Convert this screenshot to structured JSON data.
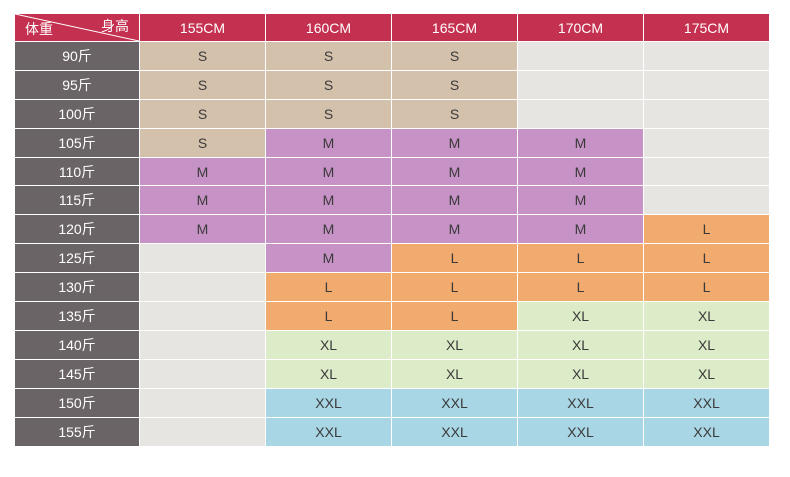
{
  "header": {
    "weight_label": "体重",
    "height_label": "身高",
    "heights": [
      "155CM",
      "160CM",
      "165CM",
      "170CM",
      "175CM"
    ]
  },
  "colors": {
    "header_bg": "#c4304f",
    "row_head_bg": "#6b6466",
    "S": "#d4c1ac",
    "M": "#c793c6",
    "L": "#f1ab6e",
    "XL": "#dcecc8",
    "XXL": "#a9d6e5",
    "empty": "#e6e5e1"
  },
  "rows": [
    {
      "weight": "90斤",
      "sizes": [
        "S",
        "S",
        "S",
        "",
        ""
      ]
    },
    {
      "weight": "95斤",
      "sizes": [
        "S",
        "S",
        "S",
        "",
        ""
      ]
    },
    {
      "weight": "100斤",
      "sizes": [
        "S",
        "S",
        "S",
        "",
        ""
      ]
    },
    {
      "weight": "105斤",
      "sizes": [
        "S",
        "M",
        "M",
        "M",
        ""
      ]
    },
    {
      "weight": "110斤",
      "sizes": [
        "M",
        "M",
        "M",
        "M",
        ""
      ]
    },
    {
      "weight": "115斤",
      "sizes": [
        "M",
        "M",
        "M",
        "M",
        ""
      ]
    },
    {
      "weight": "120斤",
      "sizes": [
        "M",
        "M",
        "M",
        "M",
        "L"
      ]
    },
    {
      "weight": "125斤",
      "sizes": [
        "",
        "M",
        "L",
        "L",
        "L"
      ]
    },
    {
      "weight": "130斤",
      "sizes": [
        "",
        "L",
        "L",
        "L",
        "L"
      ]
    },
    {
      "weight": "135斤",
      "sizes": [
        "",
        "L",
        "L",
        "XL",
        "XL"
      ]
    },
    {
      "weight": "140斤",
      "sizes": [
        "",
        "XL",
        "XL",
        "XL",
        "XL"
      ]
    },
    {
      "weight": "145斤",
      "sizes": [
        "",
        "XL",
        "XL",
        "XL",
        "XL"
      ]
    },
    {
      "weight": "150斤",
      "sizes": [
        "",
        "XXL",
        "XXL",
        "XXL",
        "XXL"
      ]
    },
    {
      "weight": "155斤",
      "sizes": [
        "",
        "XXL",
        "XXL",
        "XXL",
        "XXL"
      ]
    }
  ]
}
